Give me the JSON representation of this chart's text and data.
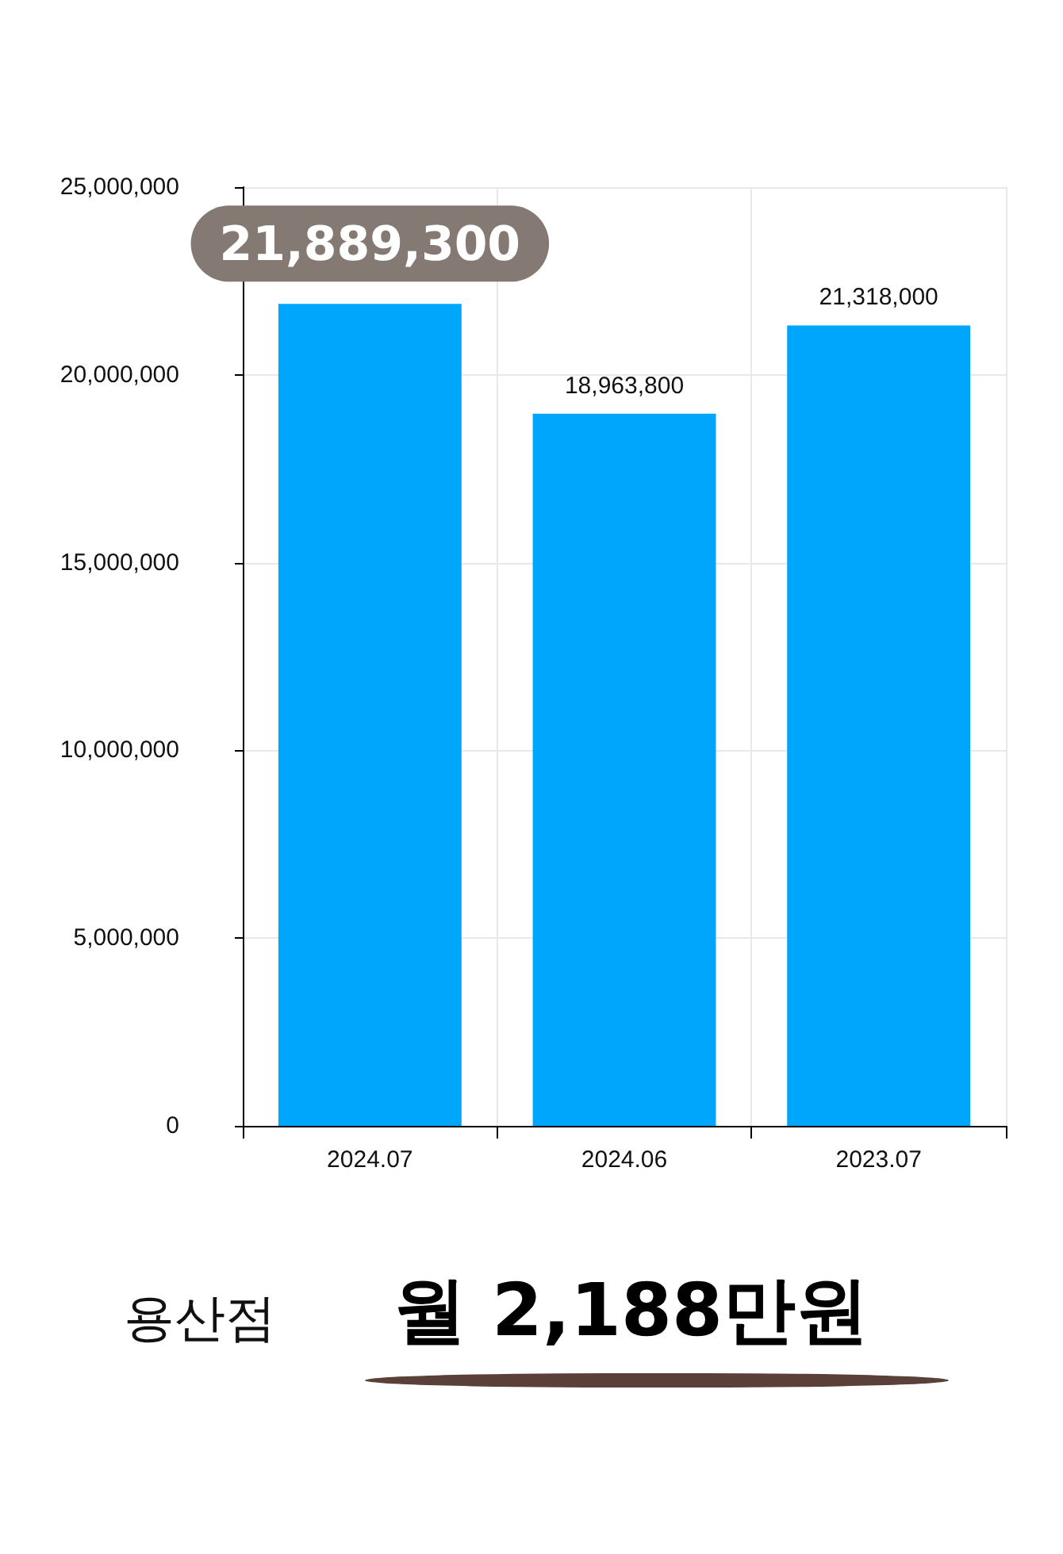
{
  "chart_data": {
    "type": "bar",
    "categories": [
      "2024.07",
      "2024.06",
      "2023.07"
    ],
    "values": [
      21889300,
      18963800,
      21318000
    ],
    "value_labels": [
      "21,889,300",
      "18,963,800",
      "21,318,000"
    ],
    "color": "#00a6fb",
    "ylim": [
      0,
      25000000
    ],
    "yticks": [
      0,
      {
        "value": 5000000,
        "label": "5,000,000"
      },
      {
        "value": 10000000,
        "label": "10,000,000"
      },
      {
        "value": 15000000,
        "label": "15,000,000"
      },
      {
        "value": 20000000,
        "label": "20,000,000"
      },
      {
        "value": 25000000,
        "label": "25,000,000"
      }
    ],
    "grid": true,
    "annotations": [
      "용산점",
      "월 2,188만원"
    ]
  }
}
